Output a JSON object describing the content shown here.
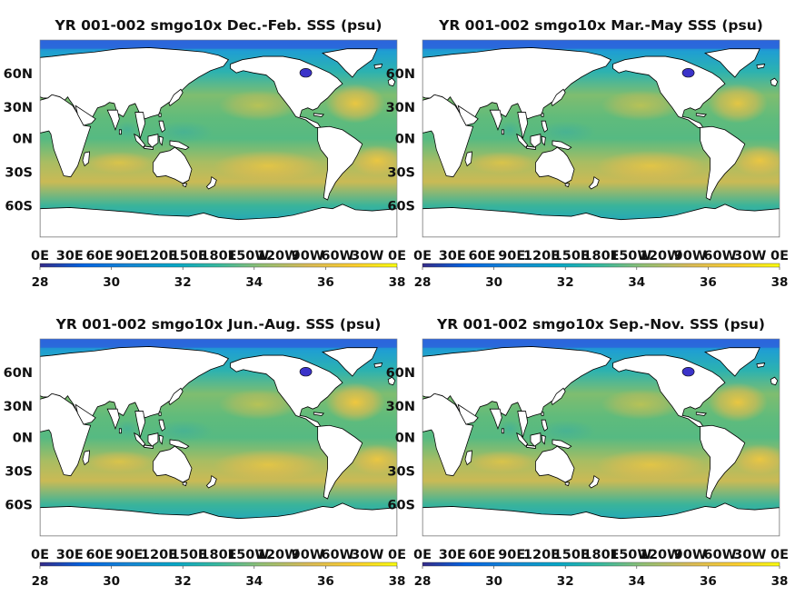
{
  "figure": {
    "panels": [
      {
        "title": "YR 001-002 smgo10x Dec.-Feb. SSS (psu)",
        "season": "djf"
      },
      {
        "title": "YR 001-002 smgo10x Mar.-May SSS (psu)",
        "season": "mam"
      },
      {
        "title": "YR 001-002 smgo10x Jun.-Aug. SSS (psu)",
        "season": "jja"
      },
      {
        "title": "YR 001-002 smgo10x Sep.-Nov. SSS (psu)",
        "season": "son"
      }
    ],
    "lat_labels": [
      "60N",
      "30N",
      "0N",
      "30S",
      "60S"
    ],
    "lon_labels": [
      "0E",
      "30E",
      "60E",
      "90E",
      "120E",
      "150E",
      "180E",
      "150W",
      "120W",
      "90W",
      "60W",
      "30W",
      "0E"
    ],
    "colorbar": {
      "ticks": [
        "28",
        "30",
        "32",
        "34",
        "36",
        "38"
      ],
      "min": 28,
      "max": 38,
      "colormap": "parula"
    },
    "colors": {
      "land": "#ffffff",
      "coast": "#000000",
      "fresh": "#3b33c9",
      "subpolar": "#21a3c7",
      "mid": "#55bb7e",
      "subtropic": "#f0b83c",
      "salty": "#f6cc34"
    }
  }
}
